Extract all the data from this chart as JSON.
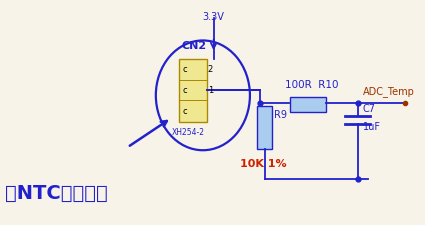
{
  "bg_color": "#f8f3e8",
  "blue": "#2222cc",
  "red_label": "#cc2200",
  "dark_red": "#993300",
  "connector_fill": "#f0e890",
  "connector_edge": "#aa8800",
  "resistor_fill": "#aaccee",
  "resistor_edge": "#2222cc",
  "title_text": "接NTC热敏电阵",
  "v33_label": "3.3V",
  "cn2_label": "CN2",
  "xh_label": "XH254-2",
  "r9_label": "R9",
  "r9_value": "10K 1%",
  "r10_label": "100R  R10",
  "c7_label": "C7",
  "c7_value": "1uF",
  "adc_label": "ADC_Temp",
  "pin2": "2",
  "pin1": "1",
  "pinc": "c"
}
